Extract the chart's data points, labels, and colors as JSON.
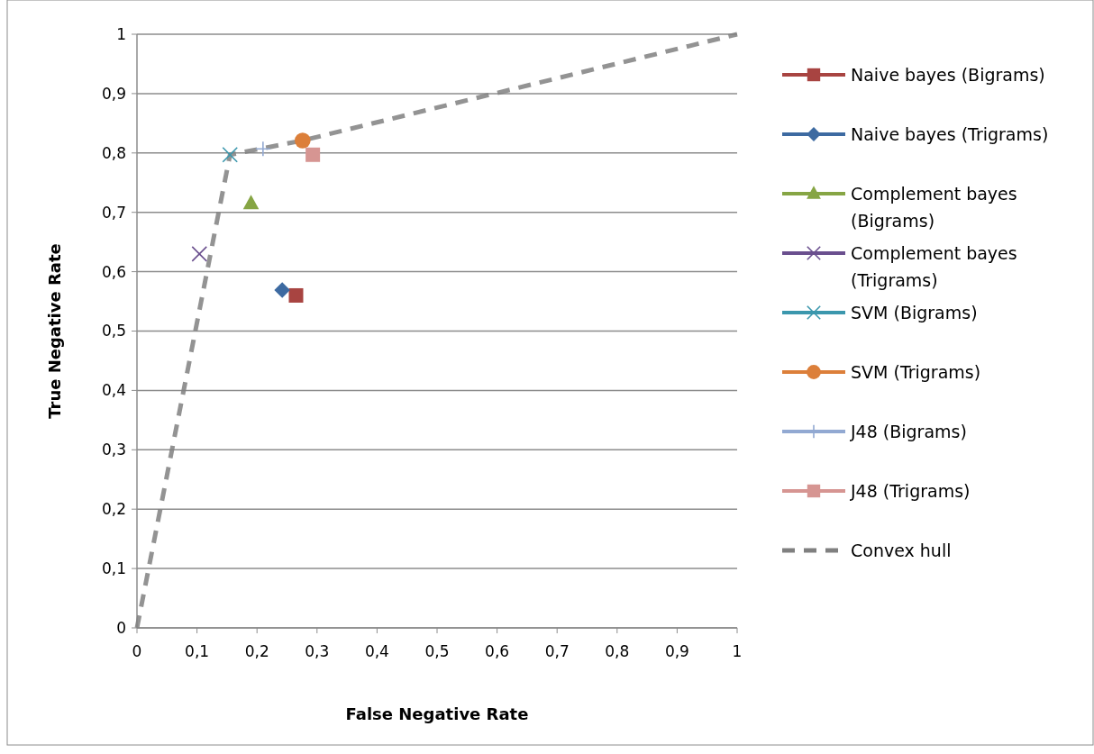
{
  "chart_data": {
    "type": "scatter",
    "xlabel": "False Negative Rate",
    "ylabel": "True Negative Rate",
    "xlim": [
      0,
      1
    ],
    "ylim": [
      0,
      1
    ],
    "xticks": [
      0,
      {
        "value": 0.1,
        "label": "0,1"
      },
      {
        "value": 0.2,
        "label": "0,2"
      },
      {
        "value": 0.3,
        "label": "0,3"
      },
      {
        "value": 0.4,
        "label": "0,4"
      },
      {
        "value": 0.5,
        "label": "0,5"
      },
      {
        "value": 0.6,
        "label": "0,6"
      },
      {
        "value": 0.7,
        "label": "0,7"
      },
      {
        "value": 0.8,
        "label": "0,8"
      },
      {
        "value": 0.9,
        "label": "0,9"
      },
      1
    ],
    "yticks": [
      0,
      {
        "value": 0.1,
        "label": "0,1"
      },
      {
        "value": 0.2,
        "label": "0,2"
      },
      {
        "value": 0.3,
        "label": "0,3"
      },
      {
        "value": 0.4,
        "label": "0,4"
      },
      {
        "value": 0.5,
        "label": "0,5"
      },
      {
        "value": 0.6,
        "label": "0,6"
      },
      {
        "value": 0.7,
        "label": "0,7"
      },
      {
        "value": 0.8,
        "label": "0,8"
      },
      {
        "value": 0.9,
        "label": "0,9"
      },
      1
    ],
    "grid": "y",
    "legend": "right",
    "series": [
      {
        "name": "Naive bayes (Bigrams)",
        "color": "#a84441",
        "marker": "square",
        "x": [
          0.265
        ],
        "values": [
          0.56
        ]
      },
      {
        "name": "Naive bayes (Trigrams)",
        "color": "#3d6aa1",
        "marker": "diamond",
        "x": [
          0.242
        ],
        "values": [
          0.569
        ]
      },
      {
        "name": "Complement bayes (Bigrams)",
        "color": "#86a544",
        "marker": "triangle",
        "x": [
          0.19
        ],
        "values": [
          0.715
        ]
      },
      {
        "name": "Complement bayes (Trigrams)",
        "color": "#6a4f8e",
        "marker": "cross",
        "x": [
          0.104
        ],
        "values": [
          0.63
        ]
      },
      {
        "name": "SVM (Bigrams)",
        "color": "#3b97ad",
        "marker": "cross",
        "x": [
          0.155
        ],
        "values": [
          0.797
        ]
      },
      {
        "name": "SVM (Trigrams)",
        "color": "#dc7f3a",
        "marker": "circle",
        "x": [
          0.276
        ],
        "values": [
          0.821
        ]
      },
      {
        "name": "J48 (Bigrams)",
        "color": "#92a9d2",
        "marker": "plus",
        "x": [
          0.21
        ],
        "values": [
          0.807
        ]
      },
      {
        "name": "J48 (Trigrams)",
        "color": "#d69592",
        "marker": "square",
        "x": [
          0.293
        ],
        "values": [
          0.797
        ]
      },
      {
        "name": "Convex hull",
        "type": "line",
        "color": "#808080",
        "line_style": "dashed",
        "marker": "none",
        "x": [
          0,
          0.155,
          0.276,
          1
        ],
        "values": [
          0,
          0.797,
          0.821,
          1
        ]
      }
    ]
  }
}
